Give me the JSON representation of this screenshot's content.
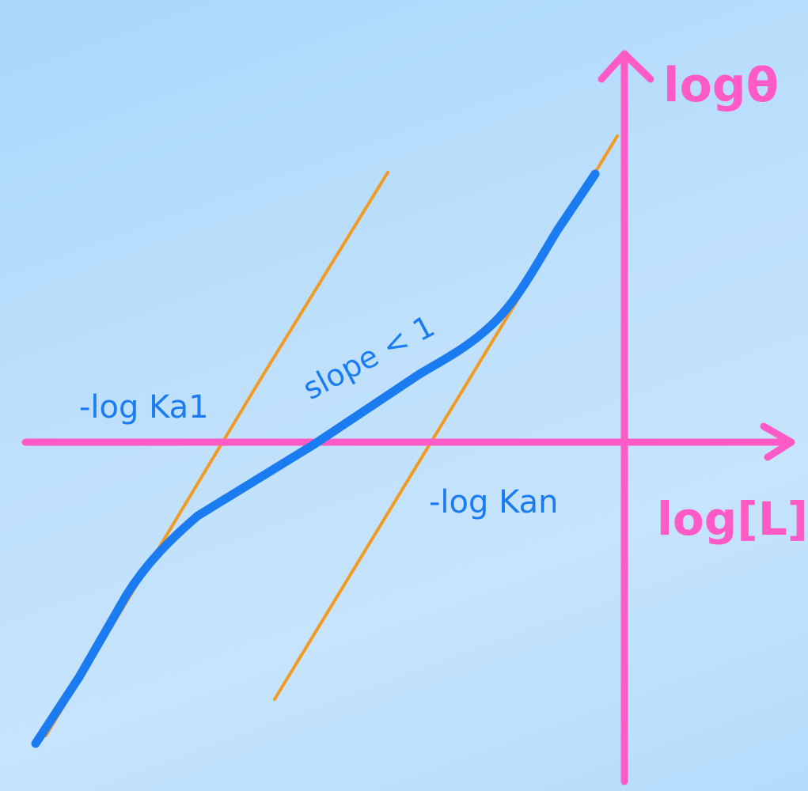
{
  "axes": {
    "x_label": "log[L]",
    "y_label": "logθ"
  },
  "annotations": {
    "slope": "slope < 1",
    "high_affinity": "-log Ka1",
    "low_affinity": "-log Kan"
  },
  "colors": {
    "background": "#b8dcfb",
    "axis": "#ff5ac6",
    "curve": "#1a7cf0",
    "asymptote": "#f29a22"
  }
}
